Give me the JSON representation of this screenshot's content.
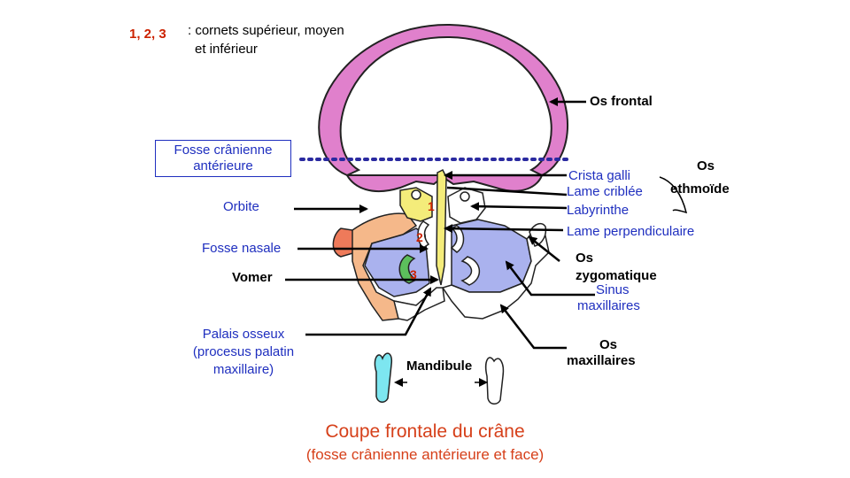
{
  "legend": {
    "numbers": "1, 2, 3",
    "text_line1": ": cornets supérieur, moyen",
    "text_line2": "et inférieur"
  },
  "labels": {
    "os_frontal": "Os frontal",
    "fosse_cranienne_l1": "Fosse crânienne",
    "fosse_cranienne_l2": "antérieure",
    "os_ethmoide_l1": "Os",
    "os_ethmoide_l2": "ethmoïde",
    "crista_galli": "Crista galli",
    "lame_criblee": "Lame criblée",
    "labyrinthe": "Labyrinthe",
    "lame_perpendiculaire": "Lame perpendiculaire",
    "orbite": "Orbite",
    "fosse_nasale": "Fosse nasale",
    "vomer": "Vomer",
    "os_zygomatique_l1": "Os",
    "os_zygomatique_l2": "zygomatique",
    "sinus_l1": "Sinus",
    "sinus_l2": "maxillaires",
    "palais_l1": "Palais osseux",
    "palais_l2": "(procesus palatin",
    "palais_l3": "maxillaire)",
    "mandibule": "Mandibule",
    "os_maxillaires_l1": "Os",
    "os_maxillaires_l2": "maxillaires"
  },
  "numbers": {
    "n1": "1",
    "n2": "2",
    "n3": "3"
  },
  "caption": {
    "title": "Coupe frontale du crâne",
    "subtitle": "(fosse crânienne  antérieure et face)"
  },
  "colors": {
    "frontal": "#e080cc",
    "ethmoid": "#f4ec7a",
    "maxillary_blue": "#aab2ee",
    "orange_bone": "#f5b88a",
    "zygomatic_red": "#ee7a5a",
    "tooth": "#7de6f0",
    "turbinate_green": "#5cbf5c",
    "label_blue": "#1f2fbf",
    "caption_orange": "#d6401a"
  }
}
